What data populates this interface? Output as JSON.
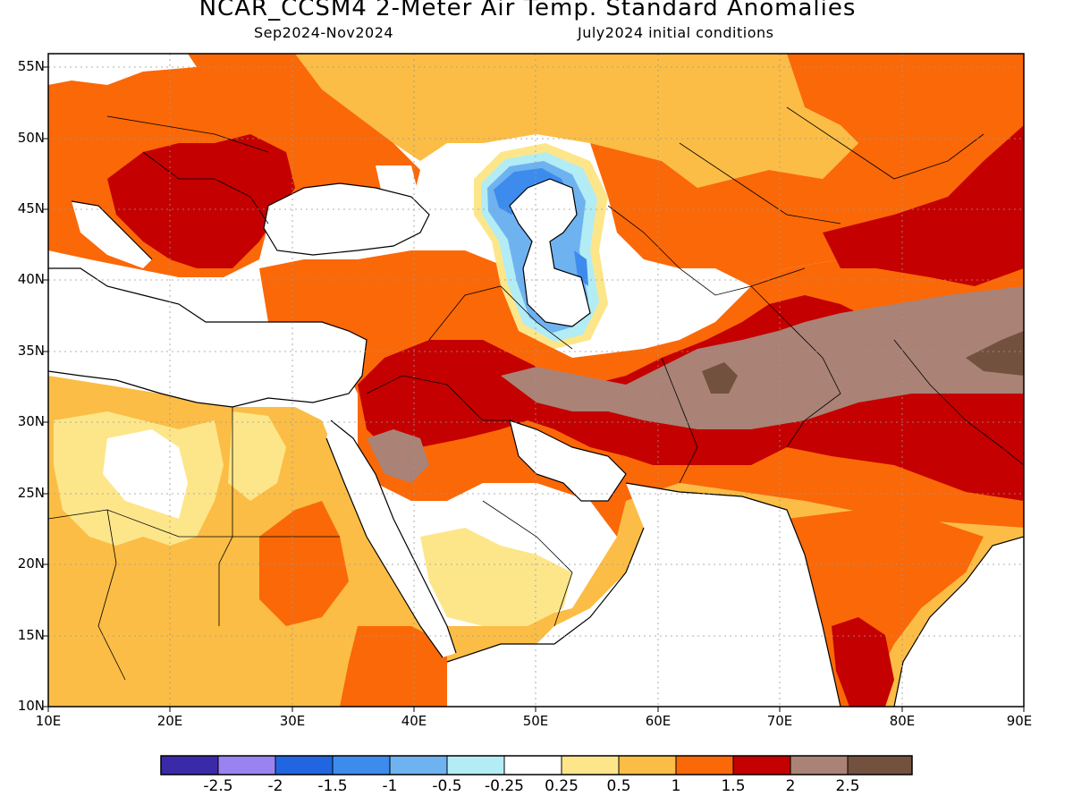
{
  "header": {
    "title": "NCAR_CCSM4 2-Meter Air Temp. Standard Anomalies",
    "period": "Sep2024-Nov2024",
    "initial_conditions": "July2024 initial conditions"
  },
  "map": {
    "latitude_labels": [
      "55N",
      "50N",
      "45N",
      "40N",
      "35N",
      "30N",
      "25N",
      "20N",
      "15N",
      "10N"
    ],
    "longitude_labels": [
      "10E",
      "20E",
      "30E",
      "40E",
      "50E",
      "60E",
      "70E",
      "80E",
      "90E"
    ]
  },
  "colorbar": {
    "colors": [
      "#3b2aa8",
      "#9a83f0",
      "#2166e0",
      "#3d8ced",
      "#6fb2f0",
      "#b2ecf5",
      "#ffffff",
      "#fde68a",
      "#fbbd45",
      "#fb6807",
      "#c40000",
      "#aa8276",
      "#73513f"
    ],
    "tick_labels": [
      "-2.5",
      "-2",
      "-1.5",
      "-1",
      "-0.5",
      "-0.25",
      "0.25",
      "0.5",
      "1",
      "1.5",
      "2",
      "2.5"
    ]
  }
}
